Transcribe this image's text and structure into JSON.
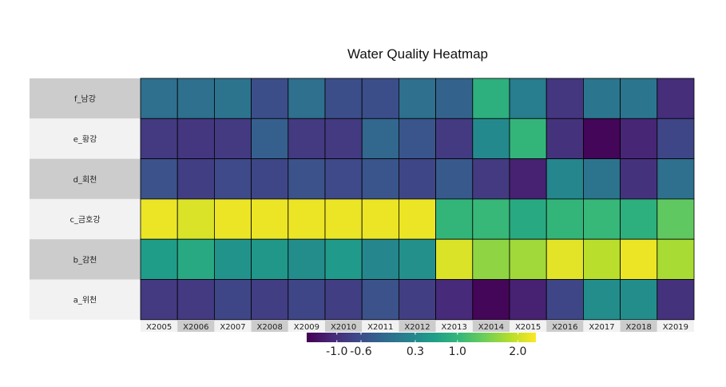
{
  "chart_data": {
    "type": "heatmap",
    "title": "Water Quality Heatmap",
    "rows": [
      "f_남강",
      "e_황강",
      "d_회천",
      "c_금호강",
      "b_감천",
      "a_위천"
    ],
    "columns": [
      "X2005",
      "X2006",
      "X2007",
      "X2008",
      "X2009",
      "X2010",
      "X2011",
      "X2012",
      "X2013",
      "X2014",
      "X2015",
      "X2016",
      "X2017",
      "X2018",
      "X2019"
    ],
    "values": [
      [
        -0.1,
        -0.1,
        -0.05,
        -0.6,
        -0.1,
        -0.6,
        -0.6,
        -0.1,
        -0.3,
        0.9,
        0.1,
        -0.9,
        0.0,
        0.0,
        -1.0
      ],
      [
        -0.85,
        -0.9,
        -0.85,
        -0.35,
        -0.85,
        -0.85,
        -0.25,
        -0.5,
        -0.85,
        0.3,
        1.0,
        -0.95,
        -1.45,
        -1.1,
        -0.7
      ],
      [
        -0.55,
        -0.8,
        -0.65,
        -0.7,
        -0.55,
        -0.65,
        -0.5,
        -0.7,
        -0.45,
        -0.85,
        -1.15,
        0.25,
        -0.05,
        -0.95,
        -0.1
      ],
      [
        2.2,
        2.1,
        2.2,
        2.2,
        2.2,
        2.2,
        2.2,
        2.2,
        1.0,
        1.05,
        0.8,
        1.0,
        1.05,
        0.9,
        1.35
      ],
      [
        0.6,
        0.8,
        0.45,
        0.5,
        0.35,
        0.55,
        0.25,
        0.4,
        2.1,
        1.65,
        1.75,
        2.15,
        1.9,
        2.2,
        1.8
      ],
      [
        -0.85,
        -0.85,
        -0.7,
        -0.8,
        -0.7,
        -0.8,
        -0.55,
        -0.8,
        -1.05,
        -1.45,
        -1.15,
        -0.7,
        0.35,
        0.35,
        -0.95
      ]
    ],
    "colorbar": {
      "ticks": [
        -1.0,
        -0.6,
        0.3,
        1.0,
        2.0
      ],
      "tick_labels": [
        "-1.0",
        "-0.6",
        "0.3",
        "1.0",
        "2.0"
      ],
      "range": [
        -1.5,
        2.3
      ],
      "scale": "viridis",
      "placement": "bottom"
    }
  }
}
